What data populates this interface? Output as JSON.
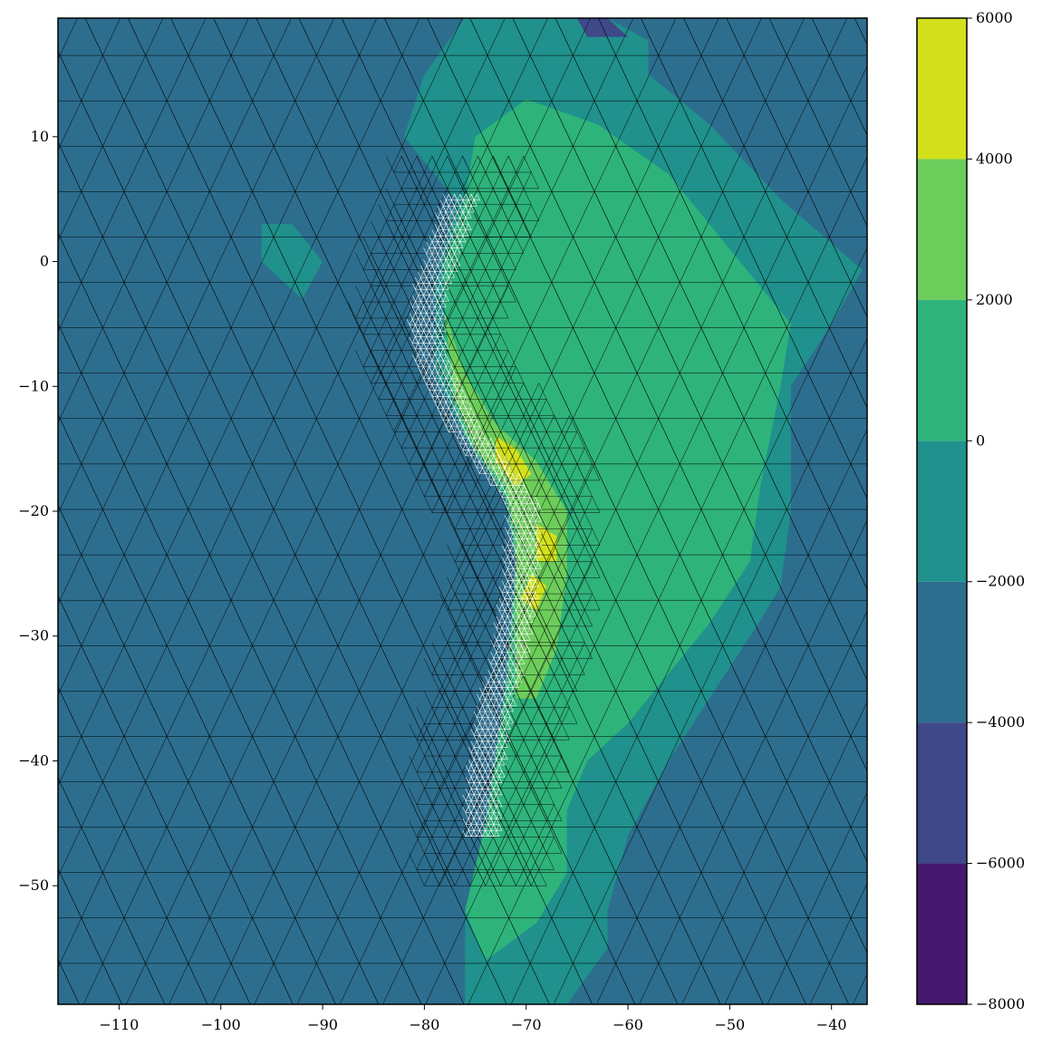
{
  "chart_data": {
    "type": "heatmap",
    "title": "",
    "xlabel": "",
    "ylabel": "",
    "xlim": [
      -116,
      -36.5
    ],
    "ylim": [
      -59.5,
      19.5
    ],
    "x_ticks": [
      -110,
      -100,
      -90,
      -80,
      -70,
      -60,
      -50,
      -40
    ],
    "y_ticks": [
      10,
      0,
      -10,
      -20,
      -30,
      -40,
      -50
    ],
    "x_tick_labels": [
      "−110",
      "−100",
      "−90",
      "−80",
      "−70",
      "−60",
      "−50",
      "−40"
    ],
    "y_tick_labels": [
      "10",
      "0",
      "−10",
      "−20",
      "−30",
      "−40",
      "−50"
    ],
    "grid": false,
    "colorbar": {
      "levels": [
        -8000,
        -6000,
        -4000,
        -2000,
        0,
        2000,
        4000,
        6000
      ],
      "tick_labels": [
        "−8000",
        "−6000",
        "−4000",
        "−2000",
        "0",
        "2000",
        "4000",
        "6000"
      ],
      "colors": [
        "#46186e",
        "#3f4889",
        "#2d6e8e",
        "#20918c",
        "#2eb37b",
        "#6ccd5b",
        "#d2e11c"
      ]
    },
    "mesh_color_background": "#000000",
    "mesh_color_trench": "#ffffff",
    "trench_centerline": [
      [
        -76.5,
        5
      ],
      [
        -77.5,
        2.5
      ],
      [
        -78.5,
        0
      ],
      [
        -79.5,
        -2.5
      ],
      [
        -80,
        -5
      ],
      [
        -79.5,
        -7.5
      ],
      [
        -78.5,
        -10
      ],
      [
        -77,
        -12.5
      ],
      [
        -75,
        -15
      ],
      [
        -73,
        -17
      ],
      [
        -71.5,
        -18.5
      ],
      [
        -70.5,
        -20
      ],
      [
        -70.5,
        -22.5
      ],
      [
        -70.7,
        -25
      ],
      [
        -71,
        -27.5
      ],
      [
        -71.5,
        -30
      ],
      [
        -72,
        -32.5
      ],
      [
        -73,
        -35
      ],
      [
        -73.5,
        -37.5
      ],
      [
        -74,
        -40
      ],
      [
        -74.3,
        -42.5
      ],
      [
        -74.5,
        -45
      ],
      [
        -74.5,
        -46.5
      ]
    ],
    "contour_regions": [
      {
        "level": 0,
        "points": [
          [
            -80,
            15
          ],
          [
            -76,
            19.5
          ],
          [
            -62,
            19.5
          ],
          [
            -52,
            15
          ],
          [
            -44,
            8
          ],
          [
            -36.5,
            0
          ],
          [
            -40,
            -5
          ],
          [
            -44,
            -10
          ],
          [
            -44,
            -20
          ],
          [
            -45,
            -26
          ],
          [
            -50,
            -33
          ],
          [
            -53,
            -38
          ],
          [
            -56,
            -44
          ],
          [
            -60,
            -50
          ],
          [
            -62,
            -55
          ],
          [
            -66,
            -59.5
          ],
          [
            -76,
            -59.5
          ],
          [
            -76,
            -52
          ],
          [
            -74,
            -45
          ],
          [
            -72,
            -34
          ],
          [
            -71,
            -24
          ],
          [
            -72,
            -19
          ],
          [
            -76,
            -14
          ],
          [
            -79,
            -9
          ],
          [
            -79,
            -2
          ],
          [
            -77,
            5
          ],
          [
            -82,
            10
          ]
        ]
      },
      {
        "level": 1,
        "points": [
          [
            -75,
            10
          ],
          [
            -70,
            13
          ],
          [
            -63,
            11
          ],
          [
            -56,
            7
          ],
          [
            -50,
            1
          ],
          [
            -44,
            -5
          ],
          [
            -45,
            -10
          ],
          [
            -47,
            -18
          ],
          [
            -48,
            -24
          ],
          [
            -52,
            -29
          ],
          [
            -56,
            -33
          ],
          [
            -60,
            -37
          ],
          [
            -64,
            -40
          ],
          [
            -66,
            -44
          ],
          [
            -66,
            -49
          ],
          [
            -69,
            -53
          ],
          [
            -74,
            -56
          ],
          [
            -76,
            -52
          ],
          [
            -74,
            -45
          ],
          [
            -72,
            -34
          ],
          [
            -71,
            -24
          ],
          [
            -72,
            -19
          ],
          [
            -76,
            -14
          ],
          [
            -78,
            -9
          ],
          [
            -78,
            0
          ],
          [
            -76,
            5
          ]
        ]
      },
      {
        "level": 2,
        "points": [
          [
            -78,
            -4
          ],
          [
            -76,
            -9
          ],
          [
            -73,
            -13
          ],
          [
            -69,
            -16
          ],
          [
            -66,
            -20
          ],
          [
            -66,
            -25
          ],
          [
            -67,
            -31
          ],
          [
            -69,
            -35
          ],
          [
            -71,
            -35
          ],
          [
            -71,
            -28
          ],
          [
            -71,
            -22
          ],
          [
            -72,
            -18
          ],
          [
            -75,
            -15
          ],
          [
            -77,
            -11
          ]
        ]
      },
      {
        "level": 3,
        "points": [
          [
            -73,
            -14
          ],
          [
            -71,
            -15
          ],
          [
            -69.5,
            -17
          ],
          [
            -71,
            -18
          ],
          [
            -73,
            -16
          ]
        ]
      },
      {
        "level": 3,
        "points": [
          [
            -69,
            -21
          ],
          [
            -67,
            -22
          ],
          [
            -67,
            -24
          ],
          [
            -69,
            -24
          ]
        ]
      },
      {
        "level": 3,
        "points": [
          [
            -69.5,
            -25
          ],
          [
            -68,
            -26
          ],
          [
            -69,
            -28
          ],
          [
            -70.5,
            -27
          ]
        ]
      },
      {
        "level": 0,
        "points": [
          [
            -96,
            3
          ],
          [
            -96,
            0
          ],
          [
            -92,
            -3
          ],
          [
            -90,
            0
          ],
          [
            -93,
            3
          ]
        ]
      },
      {
        "level": -2,
        "points": [
          [
            -65,
            19.5
          ],
          [
            -62,
            19.5
          ],
          [
            -60,
            18
          ],
          [
            -64,
            18
          ]
        ]
      },
      {
        "level": -1,
        "points": [
          [
            -116,
            15
          ],
          [
            -112,
            10
          ],
          [
            -110,
            2
          ],
          [
            -112,
            -3
          ],
          [
            -110,
            -8
          ],
          [
            -104,
            -12
          ],
          [
            -98,
            -14
          ],
          [
            -94,
            -16
          ],
          [
            -92,
            -22
          ],
          [
            -88,
            -25
          ],
          [
            -84,
            -30
          ],
          [
            -82,
            -38
          ],
          [
            -80,
            -45
          ],
          [
            -78,
            -50
          ],
          [
            -75,
            -46
          ],
          [
            -74,
            -40
          ],
          [
            -73.5,
            -34
          ],
          [
            -76,
            -28
          ],
          [
            -77,
            -22
          ],
          [
            -79,
            -15
          ],
          [
            -82,
            -10
          ],
          [
            -85,
            -6
          ],
          [
            -88,
            -5
          ],
          [
            -92,
            -6
          ],
          [
            -100,
            -8
          ],
          [
            -108,
            -9
          ],
          [
            -116,
            -10
          ]
        ]
      },
      {
        "level": -1,
        "points": [
          [
            -58,
            19.5
          ],
          [
            -36.5,
            19.5
          ],
          [
            -36.5,
            -1
          ],
          [
            -45,
            5
          ],
          [
            -52,
            11
          ],
          [
            -58,
            15
          ]
        ]
      },
      {
        "level": -1,
        "points": [
          [
            -36.5,
            -10
          ],
          [
            -42,
            -18
          ],
          [
            -44,
            -25
          ],
          [
            -48,
            -30
          ],
          [
            -52,
            -35
          ],
          [
            -56,
            -40
          ],
          [
            -60,
            -46
          ],
          [
            -62,
            -52
          ],
          [
            -62,
            -59.5
          ],
          [
            -36.5,
            -59.5
          ]
        ]
      },
      {
        "level": -1,
        "points": [
          [
            -116,
            -40
          ],
          [
            -104,
            -44
          ],
          [
            -94,
            -49
          ],
          [
            -84,
            -52
          ],
          [
            -78,
            -56
          ],
          [
            -76,
            -59.5
          ],
          [
            -116,
            -59.5
          ]
        ]
      }
    ]
  }
}
